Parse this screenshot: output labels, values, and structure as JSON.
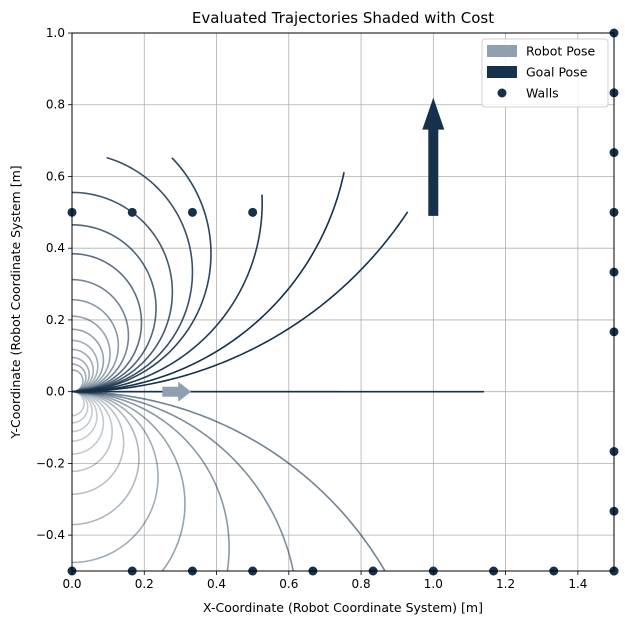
{
  "chart_data": {
    "type": "line",
    "title": "Evaluated Trajectories Shaded with Cost",
    "xlabel": "X-Coordinate (Robot Coordinate System) [m]",
    "ylabel": "Y-Coordinate (Robot Coordinate System [m]",
    "xlim": [
      0.0,
      1.5
    ],
    "ylim": [
      -0.5,
      1.0
    ],
    "x_ticks": [
      "0.0",
      "0.2",
      "0.4",
      "0.6",
      "0.8",
      "1.0",
      "1.2",
      "1.4"
    ],
    "y_ticks": [
      "−0.4",
      "−0.2",
      "0.0",
      "0.2",
      "0.4",
      "0.6",
      "0.8",
      "1.0"
    ],
    "x_tick_values": [
      0.0,
      0.2,
      0.4,
      0.6,
      0.8,
      1.0,
      1.2,
      1.4
    ],
    "y_tick_values": [
      -0.4,
      -0.2,
      0.0,
      0.2,
      0.4,
      0.6,
      0.8,
      1.0
    ],
    "grid": true,
    "legend_position": "top-right",
    "legend": [
      {
        "label": "Robot Pose",
        "kind": "arrow",
        "color": "#8fa0b3"
      },
      {
        "label": "Goal Pose",
        "kind": "arrow",
        "color": "#16314b"
      },
      {
        "label": "Walls",
        "kind": "marker",
        "color": "#16314b"
      }
    ],
    "colors": {
      "dark": "#16314b",
      "light": "#8fa0b3",
      "grid": "#b0b0b0"
    },
    "robot_pose": {
      "x": 0.25,
      "y": 0.0,
      "dx": 0.08,
      "dy": 0.0
    },
    "goal_pose": {
      "x": 1.0,
      "y": 0.49,
      "dx": 0.0,
      "dy": 0.33
    },
    "walls": {
      "top_row": {
        "x": [
          0.0,
          0.1667,
          0.3333,
          0.5
        ],
        "y": 0.5
      },
      "bottom_row": {
        "x": [
          0.0,
          0.1667,
          0.3333,
          0.5,
          0.6667,
          0.8333,
          1.0,
          1.1667,
          1.3333,
          1.5
        ],
        "y": -0.5
      },
      "right_column": {
        "x": 1.5,
        "y": [
          -0.5,
          -0.3333,
          -0.1667,
          0.1667,
          0.3333,
          0.5,
          0.6667,
          0.8333,
          1.0
        ]
      }
    },
    "straight_trajectories": [
      {
        "x_end": 1.14,
        "alpha": 1.0
      },
      {
        "x_end": 0.74,
        "alpha": 0.5
      }
    ],
    "trajectories": [
      {
        "curvature": 0.9,
        "length": 1.1,
        "alpha": 1.0
      },
      {
        "curvature": 1.3,
        "length": 1.05,
        "alpha": 1.0
      },
      {
        "curvature": 1.9,
        "length": 0.85,
        "alpha": 0.95
      },
      {
        "curvature": 2.6,
        "length": 0.9,
        "alpha": 0.9
      },
      {
        "curvature": 3.0,
        "length": 0.95,
        "alpha": 0.85
      },
      {
        "curvature": 3.6,
        "length": 1.2,
        "alpha": 0.8
      },
      {
        "curvature": 4.3,
        "length": 1.2,
        "alpha": 0.75
      },
      {
        "curvature": 5.2,
        "length": 1.15,
        "alpha": 0.7
      },
      {
        "curvature": 6.4,
        "length": 1.0,
        "alpha": 0.6
      },
      {
        "curvature": 7.8,
        "length": 0.9,
        "alpha": 0.5
      },
      {
        "curvature": 9.5,
        "length": 0.8,
        "alpha": 0.45
      },
      {
        "curvature": 11.5,
        "length": 0.7,
        "alpha": 0.45
      },
      {
        "curvature": 14.0,
        "length": 0.6,
        "alpha": 0.4
      },
      {
        "curvature": 17.0,
        "length": 0.5,
        "alpha": 0.4
      },
      {
        "curvature": 21.0,
        "length": 0.42,
        "alpha": 0.4
      },
      {
        "curvature": 26.0,
        "length": 0.34,
        "alpha": 0.4
      },
      {
        "curvature": 33.0,
        "length": 0.28,
        "alpha": 0.4
      },
      {
        "curvature": -1.0,
        "length": 1.1,
        "alpha": 0.6
      },
      {
        "curvature": -1.6,
        "length": 0.95,
        "alpha": 0.55
      },
      {
        "curvature": -2.3,
        "length": 0.85,
        "alpha": 0.5
      },
      {
        "curvature": -3.2,
        "length": 0.8,
        "alpha": 0.45
      },
      {
        "curvature": -4.2,
        "length": 0.75,
        "alpha": 0.4
      },
      {
        "curvature": -5.4,
        "length": 0.7,
        "alpha": 0.35
      },
      {
        "curvature": -7.0,
        "length": 0.65,
        "alpha": 0.3
      },
      {
        "curvature": -9.0,
        "length": 0.6,
        "alpha": 0.28
      },
      {
        "curvature": -11.5,
        "length": 0.55,
        "alpha": 0.26
      },
      {
        "curvature": -14.5,
        "length": 0.5,
        "alpha": 0.25
      },
      {
        "curvature": -18.0,
        "length": 0.45,
        "alpha": 0.25
      },
      {
        "curvature": -23.0,
        "length": 0.38,
        "alpha": 0.25
      },
      {
        "curvature": -30.0,
        "length": 0.3,
        "alpha": 0.25
      }
    ]
  }
}
